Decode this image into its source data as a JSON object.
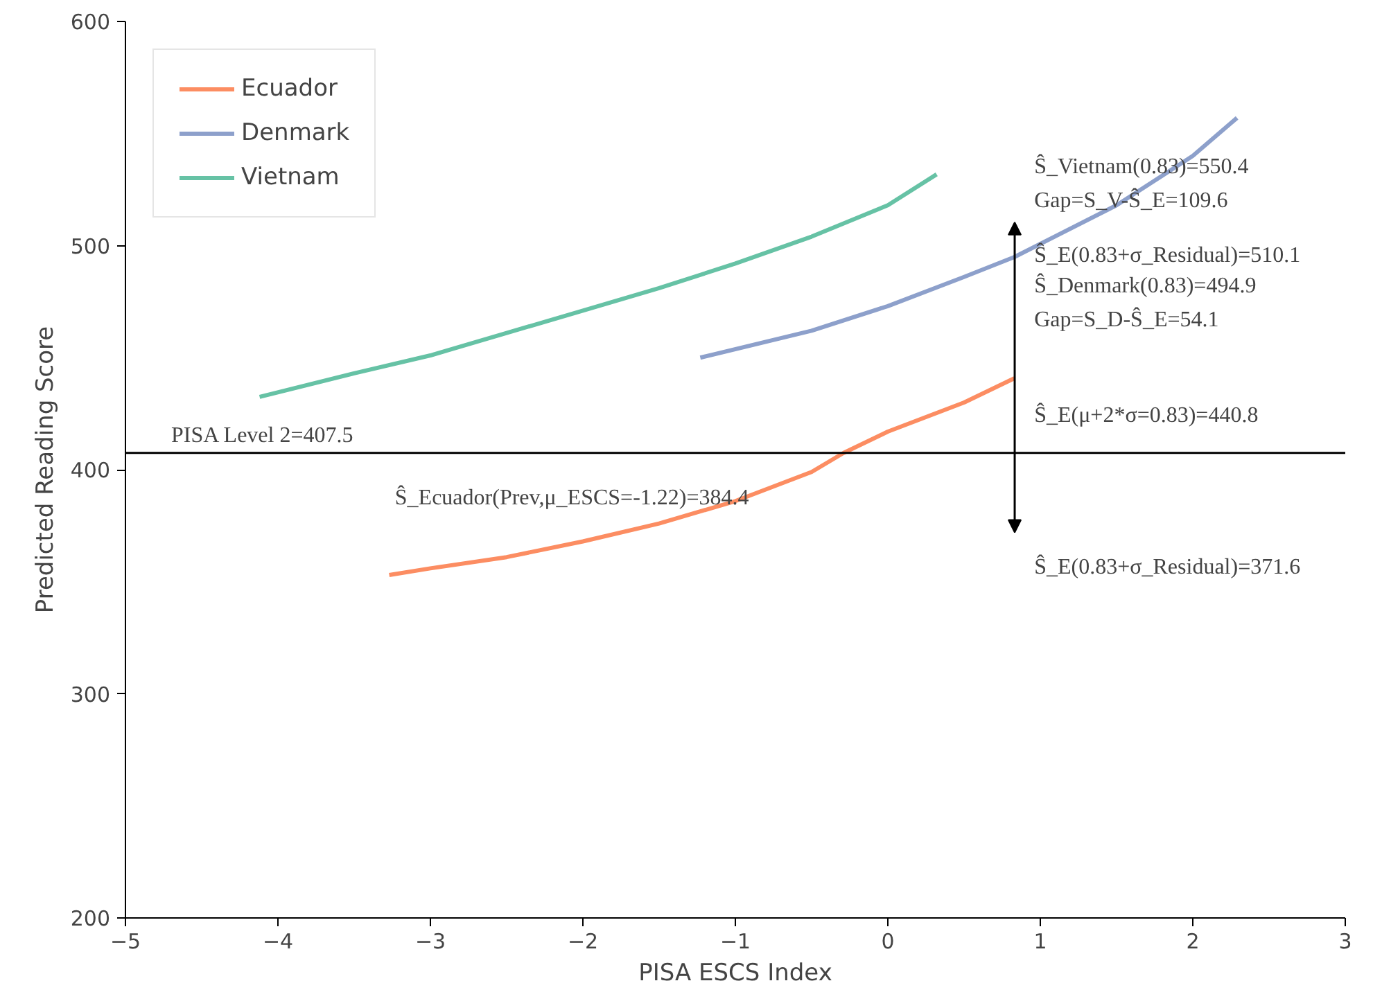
{
  "chart_data": {
    "type": "line",
    "xlabel": "PISA ESCS Index",
    "ylabel": "Predicted Reading Score",
    "xlim": [
      -5,
      3
    ],
    "ylim": [
      200,
      600
    ],
    "xticks": [
      -5,
      -4,
      -3,
      -2,
      -1,
      0,
      1,
      2,
      3
    ],
    "yticks": [
      200,
      300,
      400,
      500,
      600
    ],
    "grid": false,
    "legend": "top left",
    "marker": "none",
    "line_style": "solid",
    "series": [
      {
        "name": "Ecuador",
        "color": "#fc8d62",
        "x": [
          -3.27,
          -3,
          -2.5,
          -2,
          -1.5,
          -1,
          -0.5,
          -0.29,
          0,
          0.5,
          0.83
        ],
        "values": [
          353,
          356,
          361,
          368,
          376,
          386,
          399,
          407.5,
          417,
          430,
          440.8
        ]
      },
      {
        "name": "Denmark",
        "color": "#8da0cb",
        "x": [
          -1.23,
          -0.5,
          0,
          0.5,
          0.83,
          1.5,
          2,
          2.29
        ],
        "values": [
          450,
          462,
          473,
          486,
          494.9,
          518,
          540,
          557
        ]
      },
      {
        "name": "Vietnam",
        "color": "#66c2a5",
        "x": [
          -4.12,
          -3.5,
          -3,
          -2.5,
          -2,
          -1.5,
          -1,
          -0.5,
          0,
          0.32
        ],
        "values": [
          432.5,
          443,
          451,
          461,
          471,
          481,
          492,
          504,
          518,
          531.8
        ]
      }
    ],
    "ref_lines": [
      {
        "axis": "y",
        "value": 407.5,
        "label": "PISA Level 2=407.5",
        "color": "#000000",
        "line_style": "solid"
      }
    ],
    "annotations": [
      "Ŝ_Vietnam(0.83)=550.4",
      "Gap=S_V-Ŝ_E=109.6",
      "Ŝ_E(0.83+σ_Residual)=510.1",
      "Ŝ_Denmark(0.83)=494.9",
      "Gap=S_D-Ŝ_E=54.1",
      "Ŝ_E(μ+2*σ=0.83)=440.8",
      "Ŝ_E(0.83+σ_Residual)=371.6",
      "Ŝ_Ecuador(Prev,μ_ESCS=-1.22)=384.4"
    ]
  }
}
